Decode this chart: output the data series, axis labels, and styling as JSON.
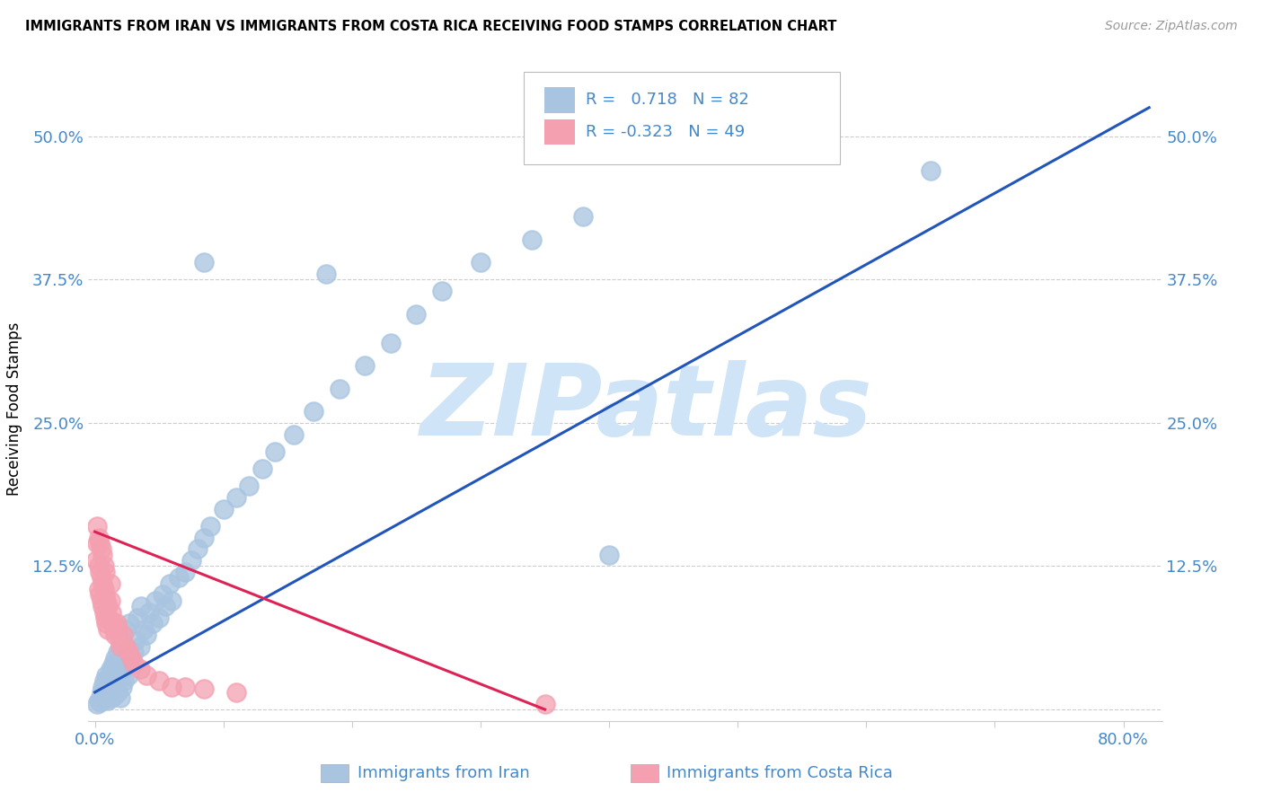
{
  "title": "IMMIGRANTS FROM IRAN VS IMMIGRANTS FROM COSTA RICA RECEIVING FOOD STAMPS CORRELATION CHART",
  "source": "Source: ZipAtlas.com",
  "xlabel_blue": "Immigrants from Iran",
  "xlabel_pink": "Immigrants from Costa Rica",
  "ylabel": "Receiving Food Stamps",
  "xlim": [
    -0.005,
    0.83
  ],
  "ylim": [
    -0.01,
    0.535
  ],
  "blue_R": 0.718,
  "blue_N": 82,
  "pink_R": -0.323,
  "pink_N": 49,
  "blue_color": "#a8c4e0",
  "pink_color": "#f4a0b0",
  "blue_line_color": "#2255bb",
  "pink_line_color": "#dd2255",
  "watermark": "ZIPatlas",
  "watermark_color": "#d0e4f8",
  "axis_color": "#4488cc",
  "grid_color": "#cccccc",
  "tick_color": "#4488cc",
  "blue_line_x": [
    0.0,
    0.82
  ],
  "blue_line_y": [
    0.015,
    0.525
  ],
  "pink_line_x": [
    0.0,
    0.35
  ],
  "pink_line_y": [
    0.155,
    0.0
  ],
  "blue_scatter_x": [
    0.002,
    0.003,
    0.004,
    0.005,
    0.005,
    0.006,
    0.006,
    0.007,
    0.007,
    0.008,
    0.008,
    0.009,
    0.009,
    0.01,
    0.01,
    0.011,
    0.011,
    0.012,
    0.012,
    0.013,
    0.013,
    0.014,
    0.014,
    0.015,
    0.015,
    0.016,
    0.016,
    0.017,
    0.018,
    0.018,
    0.019,
    0.02,
    0.02,
    0.021,
    0.021,
    0.022,
    0.023,
    0.024,
    0.025,
    0.026,
    0.027,
    0.028,
    0.03,
    0.032,
    0.033,
    0.035,
    0.036,
    0.038,
    0.04,
    0.042,
    0.045,
    0.047,
    0.05,
    0.053,
    0.055,
    0.058,
    0.06,
    0.065,
    0.07,
    0.075,
    0.08,
    0.085,
    0.09,
    0.1,
    0.11,
    0.12,
    0.13,
    0.14,
    0.155,
    0.17,
    0.19,
    0.21,
    0.23,
    0.25,
    0.27,
    0.3,
    0.34,
    0.38,
    0.18,
    0.4,
    0.65,
    0.085
  ],
  "blue_scatter_y": [
    0.005,
    0.008,
    0.006,
    0.01,
    0.015,
    0.008,
    0.02,
    0.012,
    0.025,
    0.01,
    0.018,
    0.015,
    0.03,
    0.008,
    0.022,
    0.012,
    0.028,
    0.015,
    0.035,
    0.01,
    0.032,
    0.018,
    0.04,
    0.012,
    0.038,
    0.02,
    0.045,
    0.025,
    0.015,
    0.05,
    0.03,
    0.01,
    0.055,
    0.02,
    0.065,
    0.035,
    0.025,
    0.07,
    0.04,
    0.03,
    0.075,
    0.045,
    0.05,
    0.06,
    0.08,
    0.055,
    0.09,
    0.07,
    0.065,
    0.085,
    0.075,
    0.095,
    0.08,
    0.1,
    0.09,
    0.11,
    0.095,
    0.115,
    0.12,
    0.13,
    0.14,
    0.15,
    0.16,
    0.175,
    0.185,
    0.195,
    0.21,
    0.225,
    0.24,
    0.26,
    0.28,
    0.3,
    0.32,
    0.345,
    0.365,
    0.39,
    0.41,
    0.43,
    0.38,
    0.135,
    0.47,
    0.39
  ],
  "pink_scatter_x": [
    0.001,
    0.002,
    0.002,
    0.003,
    0.003,
    0.003,
    0.004,
    0.004,
    0.004,
    0.005,
    0.005,
    0.005,
    0.006,
    0.006,
    0.006,
    0.007,
    0.007,
    0.007,
    0.008,
    0.008,
    0.008,
    0.009,
    0.009,
    0.01,
    0.01,
    0.011,
    0.012,
    0.012,
    0.013,
    0.014,
    0.015,
    0.016,
    0.017,
    0.018,
    0.019,
    0.02,
    0.022,
    0.024,
    0.026,
    0.028,
    0.03,
    0.035,
    0.04,
    0.05,
    0.06,
    0.07,
    0.085,
    0.11,
    0.35
  ],
  "pink_scatter_y": [
    0.13,
    0.145,
    0.16,
    0.105,
    0.125,
    0.15,
    0.1,
    0.12,
    0.145,
    0.095,
    0.115,
    0.14,
    0.09,
    0.11,
    0.135,
    0.085,
    0.105,
    0.125,
    0.08,
    0.1,
    0.12,
    0.075,
    0.095,
    0.07,
    0.09,
    0.08,
    0.095,
    0.11,
    0.085,
    0.075,
    0.07,
    0.065,
    0.075,
    0.07,
    0.06,
    0.055,
    0.065,
    0.055,
    0.05,
    0.045,
    0.04,
    0.035,
    0.03,
    0.025,
    0.02,
    0.02,
    0.018,
    0.015,
    0.005
  ]
}
